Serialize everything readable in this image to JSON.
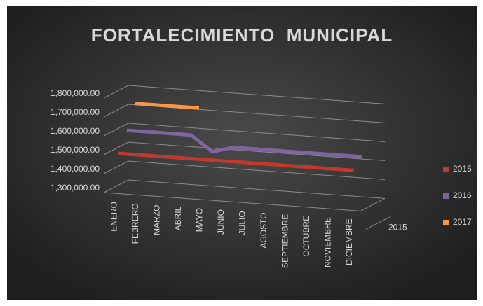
{
  "chart_data": {
    "type": "line3d",
    "title": "FORTALECIMIENTO  MUNICIPAL",
    "categories": [
      "ENERO",
      "FEBRERO",
      "MARZO",
      "ABRIL",
      "MAYO",
      "JUNIO",
      "JULIO",
      "AGOSTO",
      "SEPTIEMBRE",
      "OCTUBRE",
      "NOVIEMBRE",
      "DICIEMBRE"
    ],
    "depth_label": "2015",
    "series": [
      {
        "name": "2015",
        "color": "#c0392b",
        "values": [
          1500000,
          1500000,
          1500000,
          1500000,
          1500000,
          1500000,
          1500000,
          1500000,
          1500000,
          1500000,
          1500000,
          1500000
        ]
      },
      {
        "name": "2016",
        "color": "#8064a2",
        "values": [
          1600000,
          1600000,
          1600000,
          1600000,
          1520000,
          1550000,
          1550000,
          1550000,
          1550000,
          1550000,
          1550000,
          1550000
        ]
      },
      {
        "name": "2017",
        "color": "#f79646",
        "values": [
          1720000,
          1720000,
          1720000,
          1720000,
          null,
          null,
          null,
          null,
          null,
          null,
          null,
          null
        ]
      }
    ],
    "ylim": [
      1300000,
      1800000
    ],
    "yticks": [
      {
        "value": 1300000,
        "label": "1,300,000.00"
      },
      {
        "value": 1400000,
        "label": "1,400,000.00"
      },
      {
        "value": 1500000,
        "label": "1,500,000.00"
      },
      {
        "value": 1600000,
        "label": "1,600,000.00"
      },
      {
        "value": 1700000,
        "label": "1,700,000.00"
      },
      {
        "value": 1800000,
        "label": "1,800,000.00"
      }
    ],
    "grid": true,
    "legend": "right"
  }
}
